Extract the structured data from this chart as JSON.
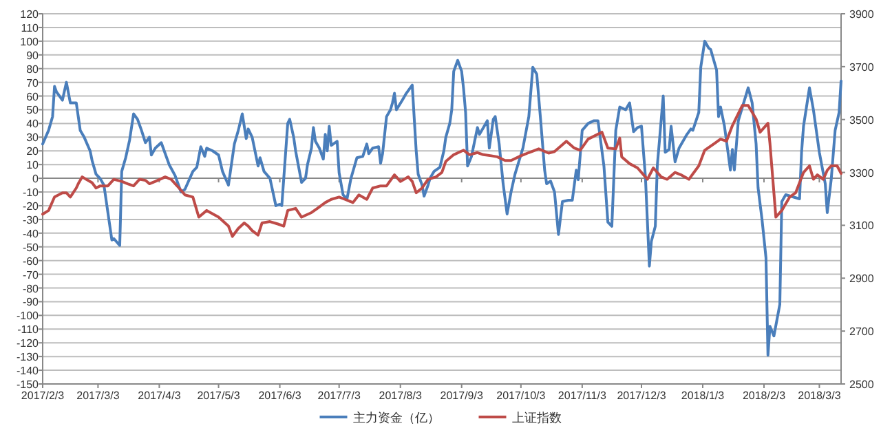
{
  "chart_data": {
    "type": "line",
    "xlim": [
      "2017-02-03",
      "2018-03-14"
    ],
    "xticks": [
      {
        "value": "2017-02-03",
        "label": "2017/2/3"
      },
      {
        "value": "2017-03-03",
        "label": "2017/3/3"
      },
      {
        "value": "2017-04-03",
        "label": "2017/4/3"
      },
      {
        "value": "2017-05-03",
        "label": "2017/5/3"
      },
      {
        "value": "2017-06-03",
        "label": "2017/6/3"
      },
      {
        "value": "2017-07-03",
        "label": "2017/7/3"
      },
      {
        "value": "2017-08-03",
        "label": "2017/8/3"
      },
      {
        "value": "2017-09-03",
        "label": "2017/9/3"
      },
      {
        "value": "2017-10-03",
        "label": "2017/10/3"
      },
      {
        "value": "2017-11-03",
        "label": "2017/11/3"
      },
      {
        "value": "2017-12-03",
        "label": "2017/12/3"
      },
      {
        "value": "2018-01-03",
        "label": "2018/1/3"
      },
      {
        "value": "2018-02-03",
        "label": "2018/2/3"
      },
      {
        "value": "2018-03-03",
        "label": "2018/3/3"
      }
    ],
    "ylim": [
      -150,
      120
    ],
    "yticks": [
      -150,
      -140,
      -130,
      -120,
      -110,
      -100,
      -90,
      -80,
      -70,
      -60,
      -50,
      -40,
      -30,
      -20,
      -10,
      0,
      10,
      20,
      30,
      40,
      50,
      60,
      70,
      80,
      90,
      100,
      110,
      120
    ],
    "y2lim": [
      2500,
      3900
    ],
    "y2ticks": [
      2500,
      2700,
      2900,
      3100,
      3300,
      3500,
      3700,
      3900
    ],
    "grid": "y",
    "legend": "bottom",
    "series": [
      {
        "name": "主力资金（亿）",
        "color": "#4a7ebb",
        "x": [
          "2017-02-03",
          "2017-02-06",
          "2017-02-08",
          "2017-02-09",
          "2017-02-10",
          "2017-02-13",
          "2017-02-15",
          "2017-02-17",
          "2017-02-20",
          "2017-02-22",
          "2017-02-24",
          "2017-02-27",
          "2017-02-28",
          "2017-03-02",
          "2017-03-04",
          "2017-03-06",
          "2017-03-10",
          "2017-03-11",
          "2017-03-14",
          "2017-03-15",
          "2017-03-17",
          "2017-03-19",
          "2017-03-21",
          "2017-03-23",
          "2017-03-25",
          "2017-03-27",
          "2017-03-29",
          "2017-03-30",
          "2017-04-01",
          "2017-04-04",
          "2017-04-06",
          "2017-04-08",
          "2017-04-11",
          "2017-04-14",
          "2017-04-16",
          "2017-04-20",
          "2017-04-22",
          "2017-04-24",
          "2017-04-26",
          "2017-04-27",
          "2017-04-30",
          "2017-05-03",
          "2017-05-05",
          "2017-05-08",
          "2017-05-09",
          "2017-05-11",
          "2017-05-13",
          "2017-05-15",
          "2017-05-17",
          "2017-05-18",
          "2017-05-20",
          "2017-05-23",
          "2017-05-24",
          "2017-05-26",
          "2017-05-29",
          "2017-06-01",
          "2017-06-03",
          "2017-06-04",
          "2017-06-07",
          "2017-06-08",
          "2017-06-10",
          "2017-06-11",
          "2017-06-14",
          "2017-06-16",
          "2017-06-17",
          "2017-06-19",
          "2017-06-20",
          "2017-06-21",
          "2017-06-23",
          "2017-06-25",
          "2017-06-26",
          "2017-06-27",
          "2017-06-28",
          "2017-06-29",
          "2017-07-02",
          "2017-07-03",
          "2017-07-05",
          "2017-07-07",
          "2017-07-09",
          "2017-07-12",
          "2017-07-15",
          "2017-07-17",
          "2017-07-18",
          "2017-07-20",
          "2017-07-23",
          "2017-07-24",
          "2017-07-25",
          "2017-07-27",
          "2017-07-29",
          "2017-07-30",
          "2017-07-31",
          "2017-08-01",
          "2017-08-04",
          "2017-08-06",
          "2017-08-09",
          "2017-08-11",
          "2017-08-12",
          "2017-08-14",
          "2017-08-15",
          "2017-08-17",
          "2017-08-18",
          "2017-08-20",
          "2017-08-23",
          "2017-08-25",
          "2017-08-26",
          "2017-08-28",
          "2017-08-29",
          "2017-08-30",
          "2017-09-01",
          "2017-09-03",
          "2017-09-04",
          "2017-09-05",
          "2017-09-06",
          "2017-09-08",
          "2017-09-11",
          "2017-09-12",
          "2017-09-14",
          "2017-09-16",
          "2017-09-17",
          "2017-09-19",
          "2017-09-20",
          "2017-09-22",
          "2017-09-24",
          "2017-09-26",
          "2017-09-28",
          "2017-09-30",
          "2017-10-04",
          "2017-10-07",
          "2017-10-09",
          "2017-10-11",
          "2017-10-13",
          "2017-10-15",
          "2017-10-16",
          "2017-10-18",
          "2017-10-20",
          "2017-10-22",
          "2017-10-24",
          "2017-10-27",
          "2017-10-29",
          "2017-10-31",
          "2017-11-01",
          "2017-11-03",
          "2017-11-06",
          "2017-11-09",
          "2017-11-11",
          "2017-11-14",
          "2017-11-16",
          "2017-11-18",
          "2017-11-20",
          "2017-11-22",
          "2017-11-25",
          "2017-11-27",
          "2017-11-29",
          "2017-12-01",
          "2017-12-03",
          "2017-12-05",
          "2017-12-07",
          "2017-12-08",
          "2017-12-10",
          "2017-12-11",
          "2017-12-14",
          "2017-12-15",
          "2017-12-17",
          "2017-12-18",
          "2017-12-20",
          "2017-12-22",
          "2017-12-26",
          "2017-12-28",
          "2017-12-29",
          "2018-01-01",
          "2018-01-02",
          "2018-01-04",
          "2018-01-06",
          "2018-01-07",
          "2018-01-10",
          "2018-01-11",
          "2018-01-12",
          "2018-01-14",
          "2018-01-17",
          "2018-01-18",
          "2018-01-19",
          "2018-01-21",
          "2018-01-26",
          "2018-01-28",
          "2018-01-30",
          "2018-01-31",
          "2018-02-02",
          "2018-02-04",
          "2018-02-05",
          "2018-02-06",
          "2018-02-08",
          "2018-02-11",
          "2018-02-12",
          "2018-02-14",
          "2018-02-21",
          "2018-02-22",
          "2018-02-23",
          "2018-02-26",
          "2018-02-28",
          "2018-03-03",
          "2018-03-06",
          "2018-03-07",
          "2018-03-09",
          "2018-03-11",
          "2018-03-13",
          "2018-03-14"
        ],
        "values": [
          25,
          35,
          45,
          67,
          63,
          57,
          70,
          55,
          55,
          35,
          30,
          20,
          13,
          3,
          0,
          -5,
          -45,
          -44,
          -49,
          5,
          15,
          28,
          47,
          43,
          35,
          26,
          30,
          17,
          22,
          26,
          18,
          10,
          2,
          -10,
          -8,
          5,
          8,
          23,
          16,
          22,
          20,
          17,
          5,
          -5,
          5,
          25,
          35,
          47,
          29,
          36,
          30,
          9,
          15,
          5,
          0,
          -20,
          -19,
          -20,
          40,
          43,
          30,
          20,
          -3,
          0,
          10,
          22,
          37,
          27,
          22,
          14,
          32,
          20,
          38,
          24,
          27,
          4,
          -12,
          -15,
          0,
          15,
          16,
          25,
          18,
          22,
          23,
          11,
          18,
          45,
          50,
          55,
          62,
          50,
          57,
          62,
          68,
          20,
          3,
          -5,
          -13,
          -5,
          0,
          5,
          8,
          20,
          30,
          40,
          50,
          78,
          86,
          78,
          65,
          48,
          9,
          16,
          37,
          32,
          37,
          42,
          22,
          43,
          45,
          25,
          -4,
          -26,
          -10,
          3,
          22,
          45,
          81,
          76,
          42,
          6,
          -4,
          -2,
          -10,
          -41,
          -17,
          -16,
          -16,
          6,
          -1,
          35,
          40,
          42,
          42,
          9,
          -32,
          -35,
          35,
          52,
          50,
          55,
          34,
          37,
          38,
          1,
          -64,
          -46,
          -35,
          9,
          60,
          19,
          21,
          38,
          12,
          22,
          32,
          36,
          35,
          48,
          81,
          100,
          95,
          94,
          79,
          45,
          52,
          38,
          6,
          21,
          6,
          42,
          66,
          55,
          25,
          -7,
          -30,
          -58,
          -129,
          -108,
          -115,
          -92,
          -17,
          -12,
          -15,
          19,
          38,
          66,
          50,
          19,
          -4,
          -25,
          -1,
          35,
          48,
          71
        ]
      },
      {
        "name": "上证指数",
        "color": "#be4b48",
        "axis": "y2",
        "x": [
          "2017-02-03",
          "2017-02-06",
          "2017-02-09",
          "2017-02-13",
          "2017-02-15",
          "2017-02-17",
          "2017-02-20",
          "2017-02-21",
          "2017-02-23",
          "2017-02-25",
          "2017-02-28",
          "2017-03-02",
          "2017-03-04",
          "2017-03-08",
          "2017-03-11",
          "2017-03-15",
          "2017-03-18",
          "2017-03-21",
          "2017-03-24",
          "2017-03-27",
          "2017-03-29",
          "2017-04-01",
          "2017-04-06",
          "2017-04-09",
          "2017-04-13",
          "2017-04-16",
          "2017-04-20",
          "2017-04-23",
          "2017-04-27",
          "2017-05-03",
          "2017-05-08",
          "2017-05-10",
          "2017-05-13",
          "2017-05-16",
          "2017-05-18",
          "2017-05-20",
          "2017-05-23",
          "2017-05-25",
          "2017-05-29",
          "2017-06-02",
          "2017-06-05",
          "2017-06-07",
          "2017-06-11",
          "2017-06-14",
          "2017-06-19",
          "2017-06-22",
          "2017-06-26",
          "2017-06-29",
          "2017-07-03",
          "2017-07-06",
          "2017-07-10",
          "2017-07-13",
          "2017-07-17",
          "2017-07-20",
          "2017-07-24",
          "2017-07-27",
          "2017-07-31",
          "2017-08-03",
          "2017-08-07",
          "2017-08-09",
          "2017-08-11",
          "2017-08-14",
          "2017-08-17",
          "2017-08-21",
          "2017-08-24",
          "2017-08-26",
          "2017-08-30",
          "2017-09-04",
          "2017-09-07",
          "2017-09-11",
          "2017-09-14",
          "2017-09-18",
          "2017-09-21",
          "2017-09-25",
          "2017-09-28",
          "2017-10-03",
          "2017-10-07",
          "2017-10-12",
          "2017-10-17",
          "2017-10-20",
          "2017-10-26",
          "2017-10-30",
          "2017-11-02",
          "2017-11-06",
          "2017-11-13",
          "2017-11-16",
          "2017-11-20",
          "2017-11-22",
          "2017-11-23",
          "2017-11-27",
          "2017-12-01",
          "2017-12-06",
          "2017-12-09",
          "2017-12-13",
          "2017-12-16",
          "2017-12-20",
          "2017-12-23",
          "2017-12-27",
          "2018-01-01",
          "2018-01-04",
          "2018-01-09",
          "2018-01-12",
          "2018-01-15",
          "2018-01-18",
          "2018-01-23",
          "2018-01-26",
          "2018-01-30",
          "2018-02-01",
          "2018-02-05",
          "2018-02-06",
          "2018-02-09",
          "2018-02-12",
          "2018-02-16",
          "2018-02-19",
          "2018-02-23",
          "2018-02-26",
          "2018-02-28",
          "2018-03-02",
          "2018-03-05",
          "2018-03-07",
          "2018-03-09",
          "2018-03-12",
          "2018-03-14"
        ],
        "values": [
          3142,
          3156,
          3207,
          3223,
          3223,
          3207,
          3241,
          3257,
          3283,
          3274,
          3261,
          3241,
          3249,
          3249,
          3274,
          3266,
          3257,
          3249,
          3274,
          3270,
          3257,
          3266,
          3283,
          3274,
          3241,
          3215,
          3207,
          3131,
          3156,
          3131,
          3097,
          3058,
          3088,
          3109,
          3097,
          3080,
          3063,
          3109,
          3114,
          3105,
          3097,
          3156,
          3164,
          3131,
          3148,
          3164,
          3186,
          3198,
          3207,
          3198,
          3186,
          3215,
          3198,
          3241,
          3249,
          3249,
          3291,
          3266,
          3283,
          3266,
          3223,
          3241,
          3274,
          3283,
          3300,
          3342,
          3367,
          3384,
          3367,
          3375,
          3367,
          3363,
          3359,
          3345,
          3345,
          3363,
          3375,
          3389,
          3373,
          3379,
          3418,
          3392,
          3384,
          3426,
          3452,
          3392,
          3389,
          3430,
          3359,
          3333,
          3317,
          3274,
          3317,
          3283,
          3274,
          3300,
          3291,
          3274,
          3325,
          3384,
          3410,
          3426,
          3418,
          3477,
          3553,
          3553,
          3502,
          3452,
          3486,
          3410,
          3131,
          3156,
          3207,
          3223,
          3300,
          3325,
          3274,
          3291,
          3274,
          3308,
          3325,
          3325,
          3296
        ]
      }
    ]
  }
}
